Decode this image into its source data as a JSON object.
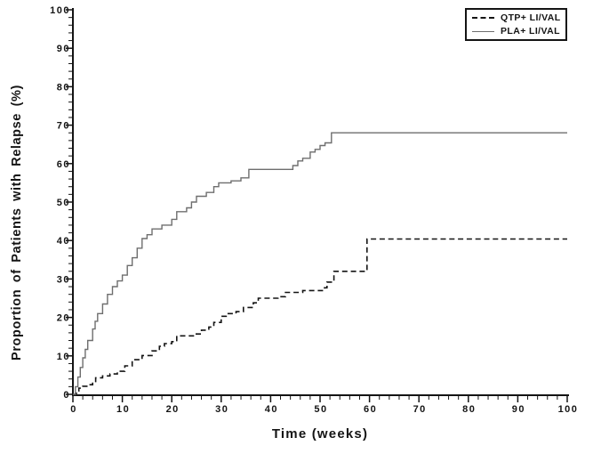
{
  "figure": {
    "background": "#ffffff",
    "axis_color": "#141414",
    "text_color": "#141414"
  },
  "chart_data": {
    "type": "line",
    "subtype": "kaplan-meier-step",
    "title": "",
    "xlabel": "Time (weeks)",
    "ylabel": "Proportion of Patients with Relapse (%)",
    "xlim": [
      0,
      100
    ],
    "ylim": [
      0,
      100
    ],
    "x_ticks": [
      0,
      10,
      20,
      30,
      40,
      50,
      60,
      70,
      80,
      90,
      100
    ],
    "y_ticks": [
      0,
      10,
      20,
      30,
      40,
      50,
      60,
      70,
      80,
      90,
      100
    ],
    "minor_tick_interval": 2,
    "grid": false,
    "legend_position": "top-right",
    "series": [
      {
        "name": "QTP+ LI/VAL",
        "line_style": "dashed",
        "color": "#141414",
        "final_value": 40.4,
        "points": [
          [
            0,
            0
          ],
          [
            0.7,
            0.7
          ],
          [
            1.2,
            1.6
          ],
          [
            2,
            2.1
          ],
          [
            3.2,
            2.5
          ],
          [
            4,
            3.1
          ],
          [
            4.6,
            4.3
          ],
          [
            6,
            4.8
          ],
          [
            7.5,
            5.3
          ],
          [
            9,
            6
          ],
          [
            10.5,
            7.4
          ],
          [
            12,
            9
          ],
          [
            14,
            10.1
          ],
          [
            16,
            11.3
          ],
          [
            17.5,
            12.5
          ],
          [
            18.5,
            13.2
          ],
          [
            20,
            13.7
          ],
          [
            21,
            15.2
          ],
          [
            24.8,
            15.7
          ],
          [
            26,
            16.7
          ],
          [
            27.5,
            17.5
          ],
          [
            28.5,
            18.7
          ],
          [
            30,
            20.3
          ],
          [
            31,
            21
          ],
          [
            33,
            21.5
          ],
          [
            34.5,
            22.6
          ],
          [
            36.5,
            23.8
          ],
          [
            37.5,
            25
          ],
          [
            41.5,
            25.4
          ],
          [
            43,
            26.5
          ],
          [
            46.5,
            27
          ],
          [
            50.9,
            27.7
          ],
          [
            51.4,
            29.2
          ],
          [
            52.8,
            32
          ],
          [
            59.5,
            40.4
          ],
          [
            100,
            40.4
          ]
        ]
      },
      {
        "name": "PLA+ LI/VAL",
        "line_style": "solid",
        "color": "#6e6e6e",
        "final_value": 68,
        "points": [
          [
            0,
            0
          ],
          [
            0.5,
            2
          ],
          [
            1,
            4.5
          ],
          [
            1.5,
            7
          ],
          [
            2,
            9.5
          ],
          [
            2.5,
            11.7
          ],
          [
            3,
            14
          ],
          [
            4,
            17
          ],
          [
            4.5,
            19
          ],
          [
            5,
            21
          ],
          [
            6,
            23.5
          ],
          [
            7,
            26
          ],
          [
            8,
            28
          ],
          [
            9,
            29.5
          ],
          [
            10,
            31
          ],
          [
            11,
            33.5
          ],
          [
            12,
            35.5
          ],
          [
            13,
            38
          ],
          [
            14,
            40.5
          ],
          [
            15,
            41.5
          ],
          [
            16,
            43
          ],
          [
            18,
            44
          ],
          [
            20,
            45.5
          ],
          [
            21,
            47.5
          ],
          [
            23,
            48.5
          ],
          [
            24,
            50
          ],
          [
            25,
            51.5
          ],
          [
            27,
            52.5
          ],
          [
            28.5,
            54
          ],
          [
            29.5,
            55
          ],
          [
            32,
            55.5
          ],
          [
            34,
            56.3
          ],
          [
            35.6,
            58.5
          ],
          [
            44.5,
            59.5
          ],
          [
            45.5,
            60.7
          ],
          [
            46.5,
            61.4
          ],
          [
            48,
            63
          ],
          [
            49,
            63.7
          ],
          [
            50,
            64.7
          ],
          [
            51,
            65.4
          ],
          [
            52.3,
            68
          ],
          [
            100,
            68
          ]
        ]
      }
    ]
  }
}
